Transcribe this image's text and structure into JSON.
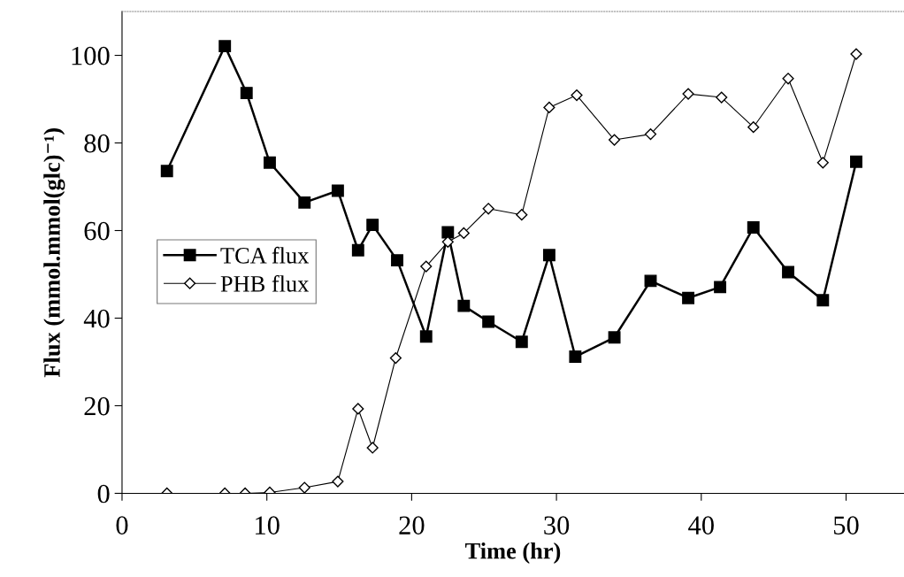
{
  "chart_data": {
    "type": "line",
    "xlabel": "Time (hr)",
    "ylabel": "Flux (mmol.mmol(glc)⁻¹)",
    "xlim": [
      0,
      54
    ],
    "xticks": [
      0,
      10,
      20,
      30,
      40,
      50
    ],
    "ylim": [
      0,
      110
    ],
    "yticks": [
      0,
      20,
      40,
      60,
      80,
      100
    ],
    "grid": false,
    "legend": "left",
    "series": [
      {
        "name": "TCA flux",
        "color": "#000000",
        "marker": "square",
        "x": [
          3.1,
          7.1,
          8.6,
          10.2,
          12.6,
          14.9,
          16.3,
          17.3,
          19.0,
          21.0,
          22.5,
          23.6,
          25.3,
          27.6,
          29.5,
          31.3,
          34.0,
          36.5,
          39.1,
          41.3,
          43.6,
          46.0,
          48.4,
          50.7
        ],
        "values": [
          73.6,
          102.1,
          91.4,
          75.5,
          66.4,
          69.1,
          55.5,
          61.3,
          53.2,
          35.8,
          59.6,
          42.8,
          39.2,
          34.6,
          54.4,
          31.2,
          35.6,
          48.5,
          44.6,
          47.1,
          60.7,
          50.5,
          44.1,
          75.7
        ]
      },
      {
        "name": "PHB flux",
        "color": "#000000",
        "marker": "diamond",
        "x": [
          3.1,
          7.1,
          8.5,
          10.2,
          12.6,
          14.9,
          16.3,
          17.3,
          18.9,
          21.0,
          22.5,
          23.6,
          25.3,
          27.6,
          29.5,
          31.4,
          34.0,
          36.5,
          39.1,
          41.4,
          43.6,
          46.0,
          48.4,
          50.7
        ],
        "values": [
          0,
          0,
          0,
          0.2,
          1.3,
          2.7,
          19.3,
          10.4,
          30.9,
          51.8,
          57.4,
          59.4,
          65.0,
          63.6,
          88.1,
          90.9,
          80.7,
          82.0,
          91.2,
          90.4,
          83.6,
          94.7,
          75.5,
          100.3
        ]
      }
    ]
  }
}
